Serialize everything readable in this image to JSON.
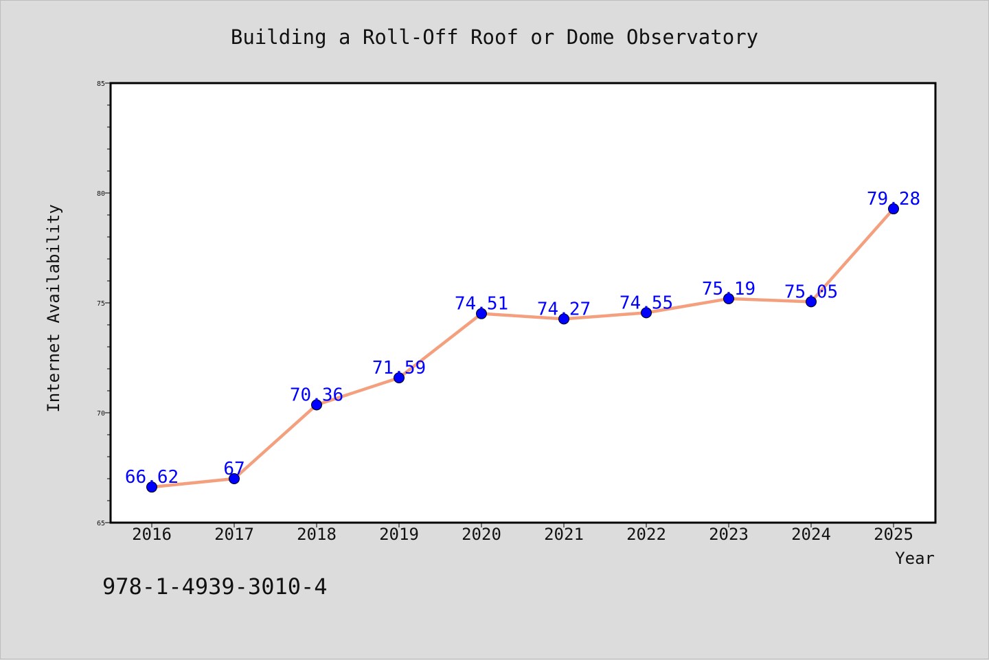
{
  "chart_data": {
    "type": "line",
    "title": "Building a Roll-Off Roof or Dome Observatory",
    "xlabel": "Year",
    "ylabel": "Internet Availability",
    "categories": [
      "2016",
      "2017",
      "2018",
      "2019",
      "2020",
      "2021",
      "2022",
      "2023",
      "2024",
      "2025"
    ],
    "series": [
      {
        "values": [
          66.62,
          67,
          70.36,
          71.59,
          74.51,
          74.27,
          74.55,
          75.19,
          75.05,
          79.28
        ],
        "data_labels": [
          "66.62",
          "67",
          "70.36",
          "71.59",
          "74.51",
          "74.27",
          "74.55",
          "75.19",
          "75.05",
          "79.28"
        ],
        "line_color": "#f4a07f",
        "marker_color": "#0000ff"
      }
    ],
    "ylim": [
      65,
      85
    ],
    "y_major_ticks": [
      "65",
      "70",
      "75",
      "80",
      "85"
    ],
    "y_minor_step": 1,
    "grid": false,
    "legend": "none"
  },
  "footer": {
    "isbn": "978-1-4939-3010-4"
  },
  "colors": {
    "background": "#dcdcdc",
    "plot_background": "#ffffff",
    "axis": "#000000"
  }
}
